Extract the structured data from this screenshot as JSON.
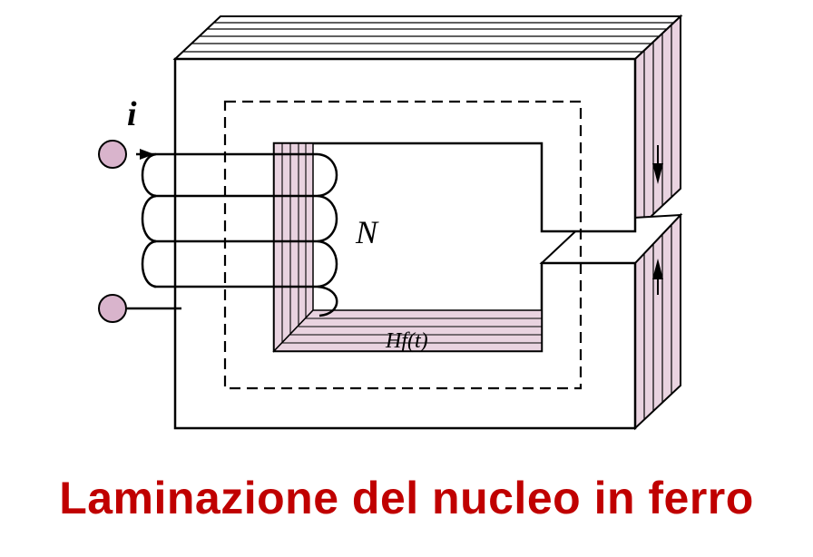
{
  "diagram": {
    "current_label": "i",
    "turns_label": "N",
    "core_label": "Hf(t)"
  },
  "caption": {
    "text": "Laminazione del nucleo in ferro",
    "color": "#c00000"
  },
  "colors": {
    "lamination_fill": "#e9d3e0",
    "terminal_fill": "#d9b4cc",
    "line": "#000000"
  }
}
